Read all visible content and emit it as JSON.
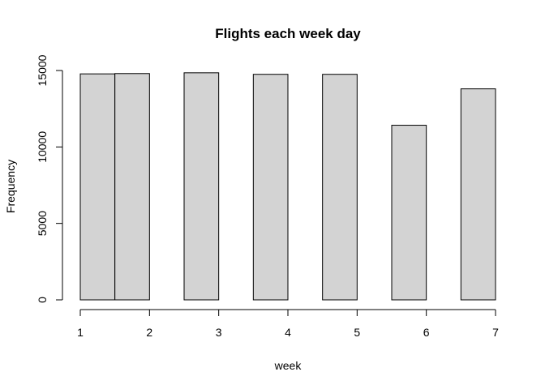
{
  "chart_data": {
    "type": "bar",
    "title": "Flights each week day",
    "xlabel": "week",
    "ylabel": "Frequency",
    "bin_edges": [
      1,
      1.5,
      2,
      2.5,
      3,
      3.5,
      4,
      4.5,
      5,
      5.5,
      6,
      6.5,
      7
    ],
    "counts": [
      14780,
      14800,
      0,
      14850,
      0,
      14750,
      0,
      14750,
      0,
      11420,
      0,
      13800
    ],
    "x_ticks": [
      1,
      2,
      3,
      4,
      5,
      6,
      7
    ],
    "x_tick_labels": [
      "1",
      "2",
      "3",
      "4",
      "5",
      "6",
      "7"
    ],
    "y_ticks": [
      0,
      5000,
      10000,
      15000
    ],
    "y_tick_labels": [
      "0",
      "5000",
      "10000",
      "15000"
    ],
    "xlim": [
      1,
      7
    ],
    "ylim": [
      0,
      15000
    ],
    "grid": false,
    "legend": "none",
    "bar_color": "#d3d3d3",
    "border_color": "#000000"
  }
}
